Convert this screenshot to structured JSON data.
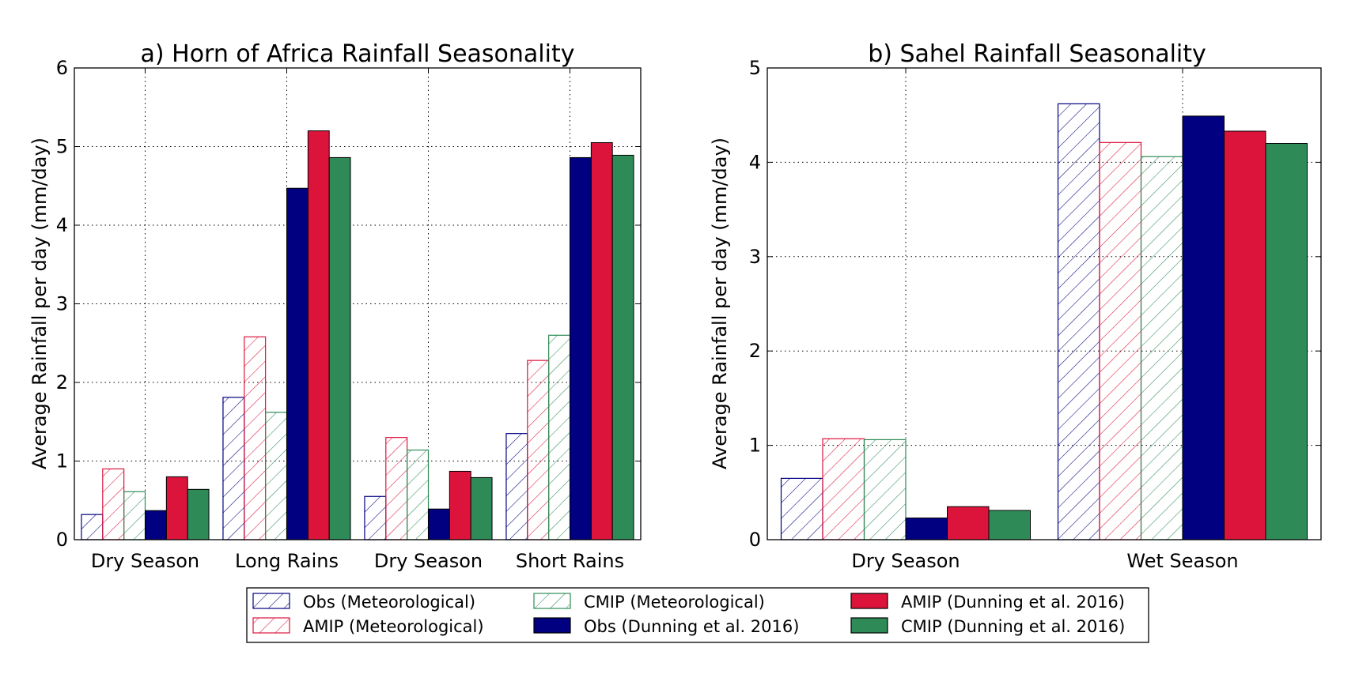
{
  "colors": {
    "obs": "#000080",
    "amip": "#DC143C",
    "cmip": "#2E8B57"
  },
  "legend": {
    "items": [
      {
        "label": "Obs (Meteorological)",
        "series": "obs",
        "hatched": true
      },
      {
        "label": "CMIP (Meteorological)",
        "series": "cmip",
        "hatched": true
      },
      {
        "label": "AMIP (Dunning et al. 2016)",
        "series": "amip",
        "hatched": false
      },
      {
        "label": "AMIP (Meteorological)",
        "series": "amip",
        "hatched": true
      },
      {
        "label": "Obs (Dunning et al. 2016)",
        "series": "obs",
        "hatched": false
      },
      {
        "label": "CMIP (Dunning et al. 2016)",
        "series": "cmip",
        "hatched": false
      }
    ],
    "placement": "bottom-center"
  },
  "chart_data": [
    {
      "type": "bar",
      "title": "a) Horn of Africa Rainfall Seasonality",
      "ylabel": "Average Rainfall per day (mm/day)",
      "xlabel": "",
      "ylim": [
        0,
        6
      ],
      "yticks": [
        "0",
        "1",
        "2",
        "3",
        "4",
        "5",
        "6"
      ],
      "grid": true,
      "categories": [
        "Dry Season",
        "Long Rains",
        "Dry Season",
        "Short Rains"
      ],
      "series": [
        {
          "name": "Obs (Meteorological)",
          "values": [
            0.32,
            1.81,
            0.55,
            1.35
          ]
        },
        {
          "name": "AMIP (Meteorological)",
          "values": [
            0.9,
            2.58,
            1.3,
            2.28
          ]
        },
        {
          "name": "CMIP (Meteorological)",
          "values": [
            0.61,
            1.62,
            1.14,
            2.6
          ]
        },
        {
          "name": "Obs (Dunning et al. 2016)",
          "values": [
            0.37,
            4.47,
            0.39,
            4.86
          ]
        },
        {
          "name": "AMIP (Dunning et al. 2016)",
          "values": [
            0.8,
            5.2,
            0.87,
            5.05
          ]
        },
        {
          "name": "CMIP (Dunning et al. 2016)",
          "values": [
            0.64,
            4.86,
            0.79,
            4.89
          ]
        }
      ]
    },
    {
      "type": "bar",
      "title": "b) Sahel Rainfall Seasonality",
      "ylabel": "Average Rainfall per day (mm/day)",
      "xlabel": "",
      "ylim": [
        0,
        5
      ],
      "yticks": [
        "0",
        "1",
        "2",
        "3",
        "4",
        "5"
      ],
      "grid": true,
      "categories": [
        "Dry Season",
        "Wet Season"
      ],
      "series": [
        {
          "name": "Obs (Meteorological)",
          "values": [
            0.65,
            4.62
          ]
        },
        {
          "name": "AMIP (Meteorological)",
          "values": [
            1.07,
            4.21
          ]
        },
        {
          "name": "CMIP (Meteorological)",
          "values": [
            1.06,
            4.06
          ]
        },
        {
          "name": "Obs (Dunning et al. 2016)",
          "values": [
            0.23,
            4.49
          ]
        },
        {
          "name": "AMIP (Dunning et al. 2016)",
          "values": [
            0.35,
            4.33
          ]
        },
        {
          "name": "CMIP (Dunning et al. 2016)",
          "values": [
            0.31,
            4.2
          ]
        }
      ]
    }
  ]
}
